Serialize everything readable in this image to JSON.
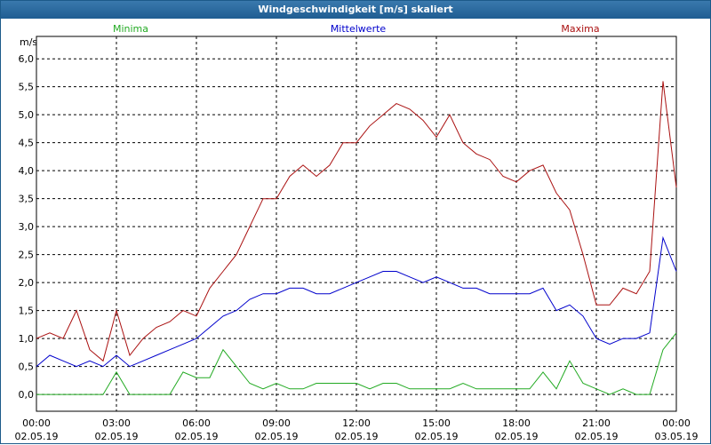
{
  "window": {
    "title": "Windgeschwindigkeit [m/s] skaliert"
  },
  "colors": {
    "minima": "#22aa22",
    "mittelwerte": "#0000cc",
    "maxima": "#aa1111",
    "titlebar": "#2b6aa0"
  },
  "chart_data": {
    "type": "line",
    "title": "Windgeschwindigkeit [m/s] skaliert",
    "ylabel": "m/s",
    "xlabel": "",
    "ylim": [
      -0.3,
      6.4
    ],
    "xlim": [
      0,
      24
    ],
    "grid": true,
    "legend_placement": "top",
    "y_ticks": [
      "0,0",
      "0,5",
      "1,0",
      "1,5",
      "2,0",
      "2,5",
      "3,0",
      "3,5",
      "4,0",
      "4,5",
      "5,0",
      "5,5",
      "6,0"
    ],
    "y_tick_values": [
      0,
      0.5,
      1,
      1.5,
      2,
      2.5,
      3,
      3.5,
      4,
      4.5,
      5,
      5.5,
      6
    ],
    "x_ticks": [
      {
        "time": "00:00",
        "date": "02.05.19"
      },
      {
        "time": "03:00",
        "date": "02.05.19"
      },
      {
        "time": "06:00",
        "date": "02.05.19"
      },
      {
        "time": "09:00",
        "date": "02.05.19"
      },
      {
        "time": "12:00",
        "date": "02.05.19"
      },
      {
        "time": "15:00",
        "date": "02.05.19"
      },
      {
        "time": "18:00",
        "date": "02.05.19"
      },
      {
        "time": "21:00",
        "date": "02.05.19"
      },
      {
        "time": "00:00",
        "date": "03.05.19"
      }
    ],
    "x_hours": [
      0,
      0.5,
      1,
      1.5,
      2,
      2.5,
      3,
      3.5,
      4,
      4.5,
      5,
      5.5,
      6,
      6.5,
      7,
      7.5,
      8,
      8.5,
      9,
      9.5,
      10,
      10.5,
      11,
      11.5,
      12,
      12.5,
      13,
      13.5,
      14,
      14.5,
      15,
      15.5,
      16,
      16.5,
      17,
      17.5,
      18,
      18.5,
      19,
      19.5,
      20,
      20.5,
      21,
      21.5,
      22,
      22.5,
      23,
      23.5,
      24
    ],
    "series": [
      {
        "name": "Minima",
        "values": [
          0.0,
          0.0,
          0.0,
          0.0,
          0.0,
          0.0,
          0.4,
          0.0,
          0.0,
          0.0,
          0.0,
          0.4,
          0.3,
          0.3,
          0.8,
          0.5,
          0.2,
          0.1,
          0.2,
          0.1,
          0.1,
          0.2,
          0.2,
          0.2,
          0.2,
          0.1,
          0.2,
          0.2,
          0.1,
          0.1,
          0.1,
          0.1,
          0.2,
          0.1,
          0.1,
          0.1,
          0.1,
          0.1,
          0.4,
          0.1,
          0.6,
          0.2,
          0.1,
          0.0,
          0.1,
          0.0,
          0.0,
          0.8,
          1.1
        ]
      },
      {
        "name": "Mittelwerte",
        "values": [
          0.5,
          0.7,
          0.6,
          0.5,
          0.6,
          0.5,
          0.7,
          0.5,
          0.6,
          0.7,
          0.8,
          0.9,
          1.0,
          1.2,
          1.4,
          1.5,
          1.7,
          1.8,
          1.8,
          1.9,
          1.9,
          1.8,
          1.8,
          1.9,
          2.0,
          2.1,
          2.2,
          2.2,
          2.1,
          2.0,
          2.1,
          2.0,
          1.9,
          1.9,
          1.8,
          1.8,
          1.8,
          1.8,
          1.9,
          1.5,
          1.6,
          1.4,
          1.0,
          0.9,
          1.0,
          1.0,
          1.1,
          2.8,
          2.2
        ]
      },
      {
        "name": "Maxima",
        "values": [
          1.0,
          1.1,
          1.0,
          1.5,
          0.8,
          0.6,
          1.5,
          0.7,
          1.0,
          1.2,
          1.3,
          1.5,
          1.4,
          1.9,
          2.2,
          2.5,
          3.0,
          3.5,
          3.5,
          3.9,
          4.1,
          3.9,
          4.1,
          4.5,
          4.5,
          4.8,
          5.0,
          5.2,
          5.1,
          4.9,
          4.6,
          5.0,
          4.5,
          4.3,
          4.2,
          3.9,
          3.8,
          4.0,
          4.1,
          3.6,
          3.3,
          2.5,
          1.6,
          1.6,
          1.9,
          1.8,
          2.2,
          5.6,
          3.7
        ]
      }
    ]
  }
}
